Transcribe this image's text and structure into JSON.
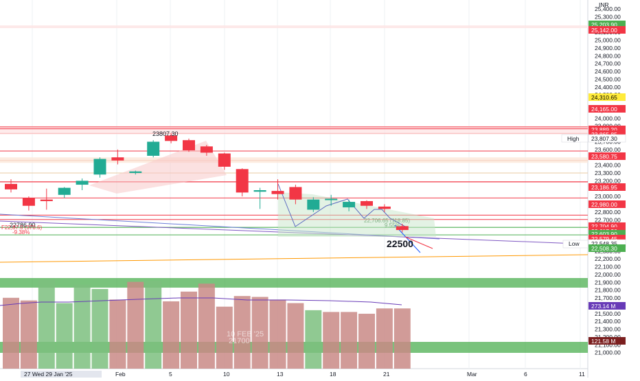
{
  "chart_data": {
    "type": "candlestick",
    "currency": "INR",
    "y_range": [
      21000,
      25400
    ],
    "y_ticks": [
      "25,400.00",
      "25,300.00",
      "25,100.00",
      "25,000.00",
      "24,900.00",
      "24,800.00",
      "24,700.00",
      "24,600.00",
      "24,500.00",
      "24,400.00",
      "24,300.00",
      "24,100.00",
      "24,000.00",
      "23,900.00",
      "23,800.00",
      "23,700.00",
      "23,600.00",
      "23,500.00",
      "23,400.00",
      "23,300.00",
      "23,200.00",
      "23,100.00",
      "23,000.00",
      "22,900.00",
      "22,800.00",
      "22,700.00",
      "22,600.00",
      "22,500.00",
      "22,400.00",
      "22,300.00",
      "22,200.00",
      "22,100.00",
      "22,000.00",
      "21,900.00",
      "21,800.00",
      "21,700.00",
      "21,600.00",
      "21,500.00",
      "21,400.00",
      "21,300.00",
      "21,200.00",
      "21,100.00",
      "21,000.00"
    ],
    "x_ticks": [
      "27 Wed 29 Jan '25",
      "Feb",
      "5",
      "10",
      "13",
      "18",
      "21",
      "Mar",
      "6",
      "11"
    ],
    "candles": [
      {
        "open": 23160,
        "high": 23220,
        "low": 23050,
        "close": 23090,
        "bull": false
      },
      {
        "open": 22980,
        "high": 23000,
        "low": 22820,
        "close": 22880,
        "bull": false
      },
      {
        "open": 22940,
        "high": 23100,
        "low": 22830,
        "close": 22960,
        "bull": false
      },
      {
        "open": 23020,
        "high": 23120,
        "low": 22980,
        "close": 23110,
        "bull": true
      },
      {
        "open": 23150,
        "high": 23230,
        "low": 23080,
        "close": 23200,
        "bull": true
      },
      {
        "open": 23280,
        "high": 23500,
        "low": 23240,
        "close": 23480,
        "bull": true
      },
      {
        "open": 23500,
        "high": 23600,
        "low": 23410,
        "close": 23460,
        "bull": false
      },
      {
        "open": 23320,
        "high": 23330,
        "low": 23280,
        "close": 23300,
        "bull": true
      },
      {
        "open": 23520,
        "high": 23720,
        "low": 23500,
        "close": 23700,
        "bull": true
      },
      {
        "open": 23780,
        "high": 23807,
        "low": 23680,
        "close": 23710,
        "bull": false
      },
      {
        "open": 23720,
        "high": 23740,
        "low": 23570,
        "close": 23590,
        "bull": false
      },
      {
        "open": 23640,
        "high": 23660,
        "low": 23520,
        "close": 23560,
        "bull": false
      },
      {
        "open": 23550,
        "high": 23560,
        "low": 23340,
        "close": 23380,
        "bull": false
      },
      {
        "open": 23350,
        "high": 23360,
        "low": 23000,
        "close": 23050,
        "bull": false
      },
      {
        "open": 23060,
        "high": 23110,
        "low": 22840,
        "close": 23080,
        "bull": true
      },
      {
        "open": 23070,
        "high": 23220,
        "low": 22960,
        "close": 23030,
        "bull": false
      },
      {
        "open": 23120,
        "high": 23150,
        "low": 22900,
        "close": 22960,
        "bull": false
      },
      {
        "open": 22830,
        "high": 22990,
        "low": 22800,
        "close": 22960,
        "bull": true
      },
      {
        "open": 22970,
        "high": 23020,
        "low": 22880,
        "close": 22970,
        "bull": true
      },
      {
        "open": 22860,
        "high": 22960,
        "low": 22810,
        "close": 22930,
        "bull": true
      },
      {
        "open": 22940,
        "high": 22950,
        "low": 22840,
        "close": 22880,
        "bull": false
      },
      {
        "open": 22870,
        "high": 22900,
        "low": 22800,
        "close": 22840,
        "bull": false
      },
      {
        "open": 22620,
        "high": 22650,
        "low": 22540,
        "close": 22570,
        "bull": false
      }
    ],
    "volume_bars": [
      {
        "level": 0.8,
        "bull": false
      },
      {
        "level": 0.77,
        "bull": false
      },
      {
        "level": 1.0,
        "bull": true
      },
      {
        "level": 0.74,
        "bull": true
      },
      {
        "level": 0.95,
        "bull": true
      },
      {
        "level": 0.9,
        "bull": true
      },
      {
        "level": 0.78,
        "bull": false
      },
      {
        "level": 0.98,
        "bull": false
      },
      {
        "level": 0.99,
        "bull": true
      },
      {
        "level": 0.76,
        "bull": false
      },
      {
        "level": 0.87,
        "bull": false
      },
      {
        "level": 0.96,
        "bull": false
      },
      {
        "level": 0.7,
        "bull": false
      },
      {
        "level": 0.82,
        "bull": false
      },
      {
        "level": 0.81,
        "bull": false
      },
      {
        "level": 0.78,
        "bull": false
      },
      {
        "level": 0.74,
        "bull": false
      },
      {
        "level": 0.66,
        "bull": true
      },
      {
        "level": 0.64,
        "bull": false
      },
      {
        "level": 0.64,
        "bull": false
      },
      {
        "level": 0.62,
        "bull": false
      },
      {
        "level": 0.68,
        "bull": false
      },
      {
        "level": 0.68,
        "bull": false
      }
    ],
    "price_labels": [
      {
        "text": "25,203.90",
        "color": "#4caf50",
        "fg": "#ffffff"
      },
      {
        "text": "25,142.00",
        "color": "#f23645",
        "fg": "#ffffff"
      },
      {
        "text": "24,310.65",
        "color": "#ffeb3b",
        "fg": "#000000"
      },
      {
        "text": "24,165.00",
        "color": "#f23645",
        "fg": "#ffffff"
      },
      {
        "text": "23,889.20",
        "color": "#f23645",
        "fg": "#ffffff"
      },
      {
        "text": "23,865.85",
        "color": "#f23645",
        "fg": "#ffffff"
      },
      {
        "text": "23,807.30",
        "color": "#ffffff",
        "fg": "#131722"
      },
      {
        "text": "23,580.75",
        "color": "#f23645",
        "fg": "#ffffff"
      },
      {
        "text": "23,186.95",
        "color": "#f23645",
        "fg": "#ffffff"
      },
      {
        "text": "22,980.00",
        "color": "#f23645",
        "fg": "#ffffff"
      },
      {
        "text": "22,704.90",
        "color": "#f23645",
        "fg": "#ffffff"
      },
      {
        "text": "22,617.30",
        "color": "#f23645",
        "fg": "#ffffff"
      },
      {
        "text": "22,603.90",
        "color": "#4caf50",
        "fg": "#ffffff"
      },
      {
        "text": "22,579.45",
        "color": "#f23645",
        "fg": "#ffffff"
      },
      {
        "text": "22,548.35",
        "color": "#ffffff",
        "fg": "#131722"
      },
      {
        "text": "22,508.30",
        "color": "#4caf50",
        "fg": "#ffffff"
      },
      {
        "text": "21,718.00",
        "color": "#673ab7",
        "fg": "#ffffff"
      },
      {
        "text": "21,158.00",
        "color": "#7b1f1f",
        "fg": "#ffffff"
      }
    ],
    "axis_badges": {
      "high_label": "High",
      "low_label": "Low",
      "vol_ma_label": "273.14 M",
      "volume_label": "121.58 M"
    },
    "annotations": {
      "high_label": "23807.30",
      "left_low_label": "22786.90",
      "left_red_text": "F22,87.0 (370.6)",
      "left_red_text_2": "-9.38%",
      "flag_text": "22,706.65 (118.85)",
      "flag_text_2": "9.55%",
      "target_label": "22500",
      "watermark_text": "10 FEB '25",
      "watermark_text_2": "21700"
    },
    "colors": {
      "bull": "#22ab94",
      "bear": "#f23645",
      "vol_bull": "#7cc07f",
      "vol_bear": "#c98a86",
      "level_red": "#f23645",
      "level_green": "#4caf50",
      "orange_line": "#ff9800",
      "blue_line": "#2962ff",
      "purple_ma": "#673ab7",
      "wedge_red": "#f7c9c9",
      "flag_green": "#c8e6c9",
      "grid": "#eef0f3"
    }
  }
}
